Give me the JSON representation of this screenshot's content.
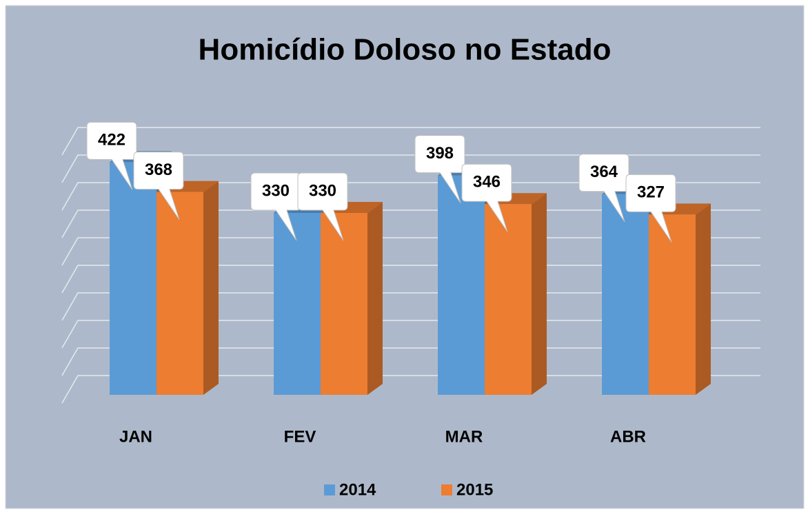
{
  "chart_data": {
    "type": "bar3d",
    "title": "Homicídio Doloso no Estado",
    "categories": [
      "JAN",
      "FEV",
      "MAR",
      "ABR"
    ],
    "series": [
      {
        "name": "2014",
        "color": "#5b9bd5",
        "values": [
          422,
          330,
          398,
          364
        ]
      },
      {
        "name": "2015",
        "color": "#ed7d31",
        "values": [
          368,
          330,
          346,
          327
        ]
      }
    ],
    "ylim": [
      0,
      450
    ],
    "yticks": [
      0,
      50,
      100,
      150,
      200,
      250,
      300,
      350,
      400,
      450
    ],
    "grid": true,
    "legend": "bottom"
  }
}
